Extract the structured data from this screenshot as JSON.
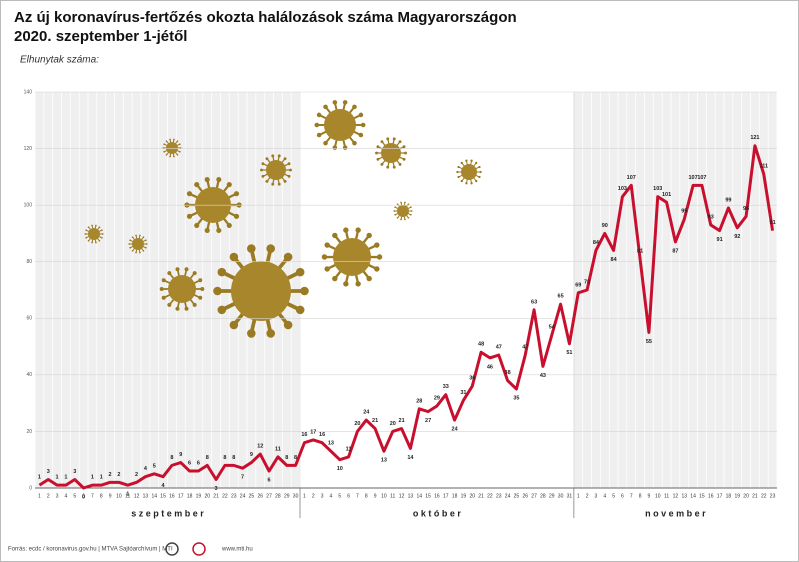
{
  "chart_data": {
    "type": "line",
    "title": [
      "Az új koronavírus-fertőzés okozta halálozások száma Magyarországon",
      "2020. szeptember 1-jétől"
    ],
    "subtitle": "Elhunytak száma:",
    "categories": [
      "1",
      "2",
      "3",
      "4",
      "5",
      "6",
      "7",
      "8",
      "9",
      "10",
      "11",
      "12",
      "13",
      "14",
      "15",
      "16",
      "17",
      "18",
      "19",
      "20",
      "21",
      "22",
      "23",
      "24",
      "25",
      "26",
      "27",
      "28",
      "29",
      "30",
      "1",
      "2",
      "3",
      "4",
      "5",
      "6",
      "7",
      "8",
      "9",
      "10",
      "11",
      "12",
      "13",
      "14",
      "15",
      "16",
      "17",
      "18",
      "19",
      "20",
      "21",
      "22",
      "23",
      "24",
      "25",
      "26",
      "27",
      "28",
      "29",
      "30",
      "31",
      "1",
      "2",
      "3",
      "4",
      "5",
      "6",
      "7",
      "8",
      "9",
      "10",
      "11",
      "12",
      "13",
      "14",
      "15",
      "16",
      "17",
      "18",
      "19",
      "20",
      "21",
      "22",
      "23"
    ],
    "month_labels": [
      "s z e p t e m b e r",
      "o k t ó b e r",
      "n o v e m b e r"
    ],
    "series": [
      {
        "name": "Elhunytak száma",
        "color": "#c8102e",
        "values": [
          1,
          3,
          1,
          1,
          3,
          0,
          1,
          1,
          2,
          2,
          1,
          2,
          4,
          5,
          4,
          8,
          9,
          6,
          6,
          8,
          3,
          8,
          8,
          7,
          9,
          12,
          6,
          11,
          8,
          8,
          16,
          17,
          16,
          13,
          10,
          11,
          20,
          24,
          21,
          13,
          20,
          21,
          14,
          28,
          27,
          29,
          33,
          24,
          31,
          36,
          48,
          46,
          47,
          38,
          35,
          47,
          63,
          43,
          54,
          65,
          51,
          69,
          70,
          84,
          90,
          84,
          103,
          107,
          81,
          55,
          103,
          101,
          87,
          95,
          107,
          107,
          93,
          91,
          99,
          92,
          96,
          121,
          111,
          91
        ]
      }
    ],
    "ylim": [
      0,
      140
    ],
    "yticks": [
      0,
      20,
      40,
      60,
      80,
      100,
      120,
      140
    ],
    "grid": true,
    "source": "Forrás: ecdc / koronavirus.gov.hu | MTVA Sajtóarchívum | MTI",
    "website": "www.mti.hu"
  }
}
